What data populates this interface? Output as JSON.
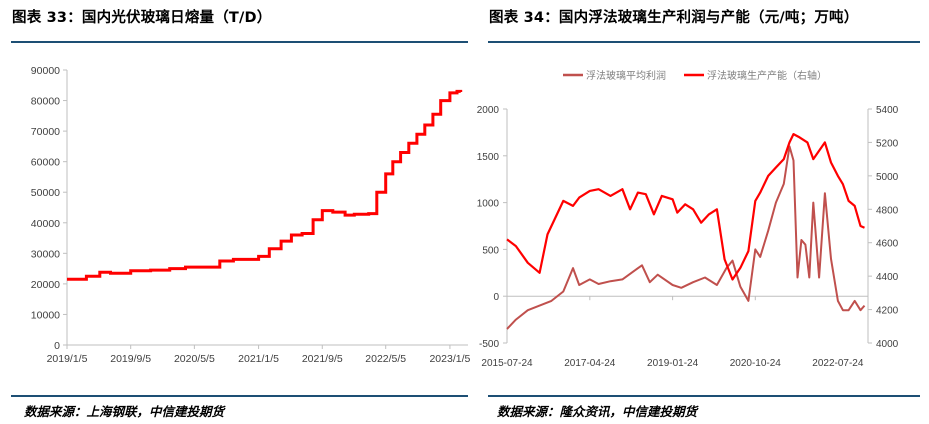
{
  "header": {
    "left_title": "图表 33：国内光伏玻璃日熔量（T/D）",
    "right_title": "图表 34：国内浮法玻璃生产利润与产能（元/吨；万吨）"
  },
  "footer": {
    "left_source": "数据来源：上海钢联，中信建投期货",
    "right_source": "数据来源：隆众资讯，中信建投期货"
  },
  "colors": {
    "line_red": "#ff0000",
    "line_dark_red": "#c0504d",
    "rule": "#1d4f74",
    "axis": "#bfbfbf"
  },
  "chart_data": [
    {
      "type": "line",
      "title": "",
      "xlabel": "",
      "ylabel": "",
      "ylim": [
        0,
        90000
      ],
      "yticks": [
        0,
        10000,
        20000,
        30000,
        40000,
        50000,
        60000,
        70000,
        80000,
        90000
      ],
      "xticks": [
        "2019/1/5",
        "2019/9/5",
        "2020/5/5",
        "2021/1/5",
        "2021/9/5",
        "2022/5/5",
        "2023/1/5"
      ],
      "grid": false,
      "series": [
        {
          "x": [
            "2019/1/5",
            "2019/3/20",
            "2019/5/10",
            "2019/6/20",
            "2019/9/5",
            "2019/11/20",
            "2020/2/1",
            "2020/4/1",
            "2020/7/1",
            "2020/8/10",
            "2020/10/1",
            "2021/1/5",
            "2021/2/15",
            "2021/4/1",
            "2021/5/10",
            "2021/6/20",
            "2021/8/1",
            "2021/9/5",
            "2021/10/15",
            "2021/12/1",
            "2022/1/5",
            "2022/3/1",
            "2022/4/1",
            "2022/5/5",
            "2022/6/1",
            "2022/7/1",
            "2022/8/1",
            "2022/9/1",
            "2022/10/1",
            "2022/11/1",
            "2022/12/1",
            "2023/1/5",
            "2023/2/1",
            "2023/2/15"
          ],
          "values": [
            21500,
            22500,
            23800,
            23500,
            24300,
            24500,
            25000,
            25500,
            25500,
            27500,
            28000,
            29000,
            31500,
            34000,
            36000,
            36500,
            41000,
            44000,
            43500,
            42500,
            42800,
            43000,
            50000,
            56000,
            60000,
            63000,
            66000,
            69000,
            72000,
            75500,
            80000,
            82500,
            83000,
            82800
          ]
        }
      ]
    },
    {
      "type": "line",
      "title": "",
      "xlabel": "",
      "ylabel": "",
      "ylim": [
        -500,
        2000
      ],
      "y2lim": [
        4000,
        5400
      ],
      "yticks": [
        -500,
        0,
        500,
        1000,
        1500,
        2000
      ],
      "y2ticks": [
        4000,
        4200,
        4400,
        4600,
        4800,
        5000,
        5200,
        5400
      ],
      "xticks": [
        "2015-07-24",
        "2017-04-24",
        "2019-01-24",
        "2020-10-24",
        "2022-07-24"
      ],
      "legend": "top-center",
      "grid": false,
      "series": [
        {
          "name": "浮法玻璃平均利润",
          "axis": "left",
          "x": [
            "2015-07-24",
            "2015-10-01",
            "2016-01-01",
            "2016-04-01",
            "2016-07-01",
            "2016-10-01",
            "2016-12-15",
            "2017-02-01",
            "2017-04-24",
            "2017-07-01",
            "2017-10-01",
            "2018-01-01",
            "2018-04-01",
            "2018-06-01",
            "2018-08-01",
            "2018-10-01",
            "2019-01-24",
            "2019-04-01",
            "2019-07-01",
            "2019-10-01",
            "2020-01-01",
            "2020-03-15",
            "2020-05-01",
            "2020-07-01",
            "2020-09-01",
            "2020-10-24",
            "2020-12-01",
            "2021-02-01",
            "2021-04-01",
            "2021-06-01",
            "2021-07-15",
            "2021-08-15",
            "2021-09-15",
            "2021-10-15",
            "2021-11-15",
            "2021-12-15",
            "2022-01-15",
            "2022-03-01",
            "2022-04-15",
            "2022-06-01",
            "2022-07-24",
            "2022-09-01",
            "2022-10-15",
            "2022-12-01",
            "2023-01-15",
            "2023-02-15"
          ],
          "values": [
            -350,
            -250,
            -150,
            -100,
            -50,
            50,
            300,
            120,
            180,
            130,
            160,
            180,
            270,
            330,
            150,
            230,
            120,
            90,
            150,
            200,
            120,
            300,
            380,
            100,
            -50,
            500,
            420,
            700,
            1000,
            1200,
            1600,
            1450,
            200,
            600,
            550,
            200,
            1000,
            200,
            1100,
            400,
            -50,
            -150,
            -150,
            -50,
            -150,
            -100
          ]
        },
        {
          "name": "浮法玻璃生产产能（右轴）",
          "axis": "right",
          "x": [
            "2015-07-24",
            "2015-10-01",
            "2016-01-01",
            "2016-04-01",
            "2016-06-01",
            "2016-08-01",
            "2016-10-01",
            "2016-12-15",
            "2017-02-01",
            "2017-04-24",
            "2017-07-01",
            "2017-10-01",
            "2018-01-01",
            "2018-03-01",
            "2018-05-01",
            "2018-07-01",
            "2018-09-01",
            "2018-11-01",
            "2019-01-24",
            "2019-03-01",
            "2019-05-01",
            "2019-07-01",
            "2019-09-01",
            "2019-11-01",
            "2020-01-01",
            "2020-03-01",
            "2020-05-01",
            "2020-07-01",
            "2020-09-01",
            "2020-10-24",
            "2020-12-01",
            "2021-02-01",
            "2021-04-01",
            "2021-06-01",
            "2021-07-15",
            "2021-08-15",
            "2021-10-01",
            "2021-12-01",
            "2022-01-15",
            "2022-03-01",
            "2022-04-15",
            "2022-06-01",
            "2022-07-24",
            "2022-09-01",
            "2022-10-15",
            "2022-12-01",
            "2023-01-15",
            "2023-02-15"
          ],
          "values": [
            4620,
            4580,
            4480,
            4420,
            4650,
            4750,
            4850,
            4820,
            4870,
            4910,
            4920,
            4880,
            4920,
            4800,
            4900,
            4890,
            4770,
            4880,
            4860,
            4780,
            4830,
            4800,
            4720,
            4770,
            4800,
            4500,
            4380,
            4450,
            4550,
            4850,
            4900,
            5000,
            5050,
            5100,
            5200,
            5250,
            5230,
            5200,
            5100,
            5150,
            5200,
            5080,
            5000,
            4950,
            4850,
            4820,
            4700,
            4690
          ]
        }
      ]
    }
  ]
}
